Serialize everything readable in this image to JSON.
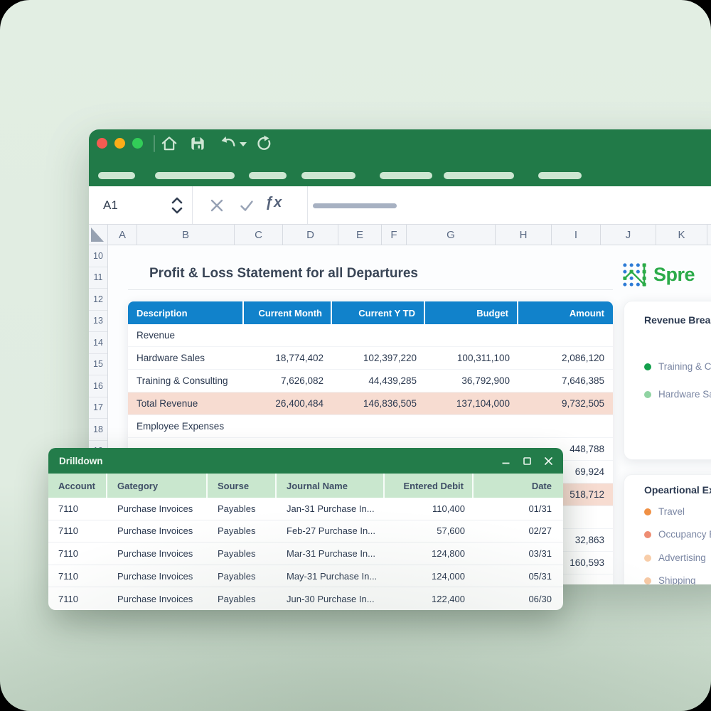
{
  "window": {
    "name_box_value": "A1",
    "fx_label": "ƒx",
    "toolbar": [
      "home-icon",
      "save-icon",
      "undo-icon",
      "redo-icon"
    ],
    "column_headers": [
      "A",
      "B",
      "C",
      "D",
      "E",
      "F",
      "G",
      "H",
      "I",
      "J",
      "K"
    ],
    "row_headers": [
      "10",
      "11",
      "12",
      "13",
      "14",
      "15",
      "16",
      "17",
      "18",
      "19"
    ]
  },
  "sheet": {
    "title": "Profit & Loss Statement for all Departures",
    "table": {
      "columns": [
        "Description",
        "Current Month",
        "Current Y TD",
        "Budget",
        "Amount"
      ],
      "rows": [
        {
          "description": "Revenue",
          "section": true
        },
        {
          "description": "Hardware Sales",
          "current_month": "18,774,402",
          "current_ytd": "102,397,220",
          "budget": "100,311,100",
          "amount": "2,086,120"
        },
        {
          "description": "Training & Consulting",
          "current_month": "7,626,082",
          "current_ytd": "44,439,285",
          "budget": "36,792,900",
          "amount": "7,646,385"
        },
        {
          "description": "Total Revenue",
          "current_month": "26,400,484",
          "current_ytd": "146,836,505",
          "budget": "137,104,000",
          "amount": "9,732,505",
          "highlight": true
        },
        {
          "description": "Employee Expenses",
          "section": true
        },
        {
          "amount": "448,788"
        },
        {
          "amount": "69,924"
        },
        {
          "amount": "518,712",
          "highlight": true
        },
        {},
        {
          "amount": "32,863"
        },
        {
          "amount": "160,593"
        },
        {}
      ]
    }
  },
  "side_panel": {
    "logo_text": "Spre",
    "cards": [
      {
        "title": "Revenue Breakd",
        "legend": [
          {
            "label": "Training & Con",
            "color": "#14a04c"
          },
          {
            "label": "Hardware Sale",
            "color": "#90d3a2"
          }
        ]
      },
      {
        "title": "Opeartional Exp",
        "legend": [
          {
            "label": "Travel",
            "color": "#f09044"
          },
          {
            "label": "Occupancy Ex",
            "color": "#ee8d73"
          },
          {
            "label": "Advertising",
            "color": "#f8cda9"
          },
          {
            "label": "Shipping",
            "color": "#f6c9a4"
          }
        ]
      }
    ]
  },
  "drilldown": {
    "title": "Drilldown",
    "controls": [
      "minimize-icon",
      "maximize-icon",
      "close-icon"
    ],
    "columns": [
      "Account",
      "Gategory",
      "Sourse",
      "Journal Name",
      "Entered Debit",
      "Date"
    ],
    "rows": [
      [
        "7110",
        "Purchase Invoices",
        "Payables",
        "Jan-31 Purchase In...",
        "110,400",
        "01/31"
      ],
      [
        "7110",
        "Purchase Invoices",
        "Payables",
        "Feb-27 Purchase In...",
        "57,600",
        "02/27"
      ],
      [
        "7110",
        "Purchase Invoices",
        "Payables",
        "Mar-31 Purchase In...",
        "124,800",
        "03/31"
      ],
      [
        "7110",
        "Purchase Invoices",
        "Payables",
        "May-31 Purchase In...",
        "124,000",
        "05/31"
      ],
      [
        "7110",
        "Purchase Invoices",
        "Payables",
        "Jun-30 Purchase In...",
        "122,400",
        "06/30"
      ]
    ]
  },
  "colors": {
    "titlebar_green": "#217a48",
    "table_header_blue": "#1182cb",
    "highlight_peach": "#f7dcd1",
    "logo_green": "#2cab4a",
    "background_green": "#e0ece1"
  }
}
